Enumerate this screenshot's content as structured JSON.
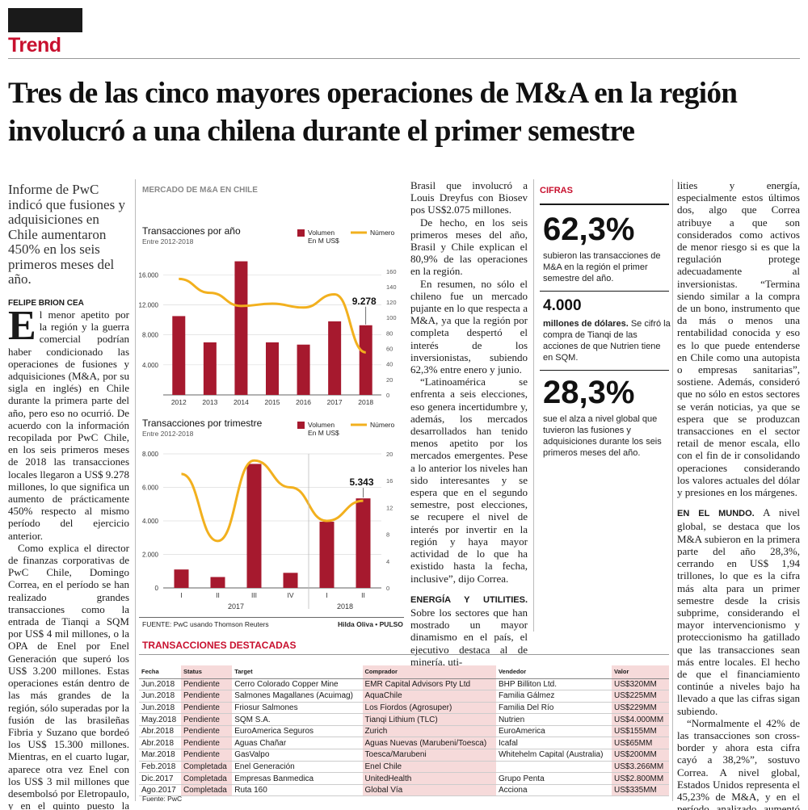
{
  "section": "Trend",
  "headline": "Tres de las cinco mayores operaciones de M&A  en la región involucró a una chilena durante el primer semestre",
  "deck": "Informe de PwC indicó que fusiones y adquisiciones en Chile aumentaron 450% en los seis primeros meses del año.",
  "byline": "FELIPE BRION CEA",
  "body_col1": {
    "dropcap": "E",
    "p1": "l menor apetito por la región y la guerra comercial podrían haber condicionado las operaciones de fusiones y adquisiciones (M&A, por su sigla en inglés) en Chile durante la primera parte del año, pero eso no ocurrió. De acuerdo con la información recopilada por PwC Chile, en los seis primeros meses de 2018 las transacciones locales llegaron a US$ 9.278 millones, lo que significa un aumento de prácticamente 450% respecto al mismo período del ejercicio anterior.",
    "p2": "Como explica el director de finanzas corporativas de PwC Chile, Domingo Correa, en el período se han realizado grandes transacciones como la entrada de Tianqi a SQM por US$ 4 mil millones, o la OPA de Enel por Enel Generación que superó los US$ 3.200 millones. Estas operaciones están dentro de las más grandes de la región, sólo superadas por la fusión de las brasileñas Fibria y Suzano que bordeó los US$ 15.300 millones. Mientras, en el cuarto lugar, aparece otra vez Enel con los US$ 3 mil millones que desembolsó por Eletropaulo, y en el quinto puesto la operación en"
  },
  "body_col2": {
    "p1": "Brasil que involucró a Louis Dreyfus con Biosev pos US$2.075 millones.",
    "p2": "De hecho, en los seis primeros meses del año, Brasil y Chile explican el 80,9% de las operaciones en la región.",
    "p3": "En resumen, no sólo el chileno fue un mercado pujante en lo que respecta a M&A, ya que la región por completa despertó el interés de los inversionistas, subiendo 62,3% entre enero y junio.",
    "p4": "“Latinoamérica se enfrenta a seis elecciones, eso genera incertidumbre y, además, los mercados desarrollados han tenido menos apetito por los mercados emergentes. Pese a lo anterior los niveles han sido interesantes y se espera que en el segundo semestre, post elecciones, se recupere el nivel de interés por invertir en la región y haya mayor actividad de lo que ha existido hasta la fecha, inclusive”, dijo Correa.",
    "subhead": "ENERGÍA Y UTILITIES.",
    "p5": " Sobre los sectores que han mostrado un mayor dinamismo en el país, el ejecutivo destaca al de minería, uti-"
  },
  "cifras": {
    "label": "CIFRAS",
    "c1_value": "62,3%",
    "c1_text": "subieron las transacciones de M&A en la región el primer semestre del año.",
    "c2_value": "4.000",
    "c2_bold": "millones de dólares.",
    "c2_text": " Se cifró la compra de Tianqi de las acciones de que Nutrien tiene en SQM.",
    "c3_value": "28,3%",
    "c3_text": "sue el alza a nivel global que tuvieron las fusiones y adquisiciones durante los seis primeros meses del año."
  },
  "body_col3": {
    "p1": "lities y energía, especialmente estos últimos dos, algo que Correa atribuye a que son considerados como activos de menor riesgo si es que la regulación protege adecuadamente al inversionistas. “Termina siendo similar a la compra de un bono, instrumento que da más o menos una rentabilidad conocida y eso es lo que puede entenderse en Chile como una autopista o empresas sanitarias”, sostiene. Además, consideró que no sólo en estos sectores se verán noticias, ya que se espera que se produzcan transacciones en el sector retail de menor escala, ello con el fin de ir consolidando operaciones considerando los valores actuales del dólar y presiones en los márgenes.",
    "subhead": "EN EL MUNDO.",
    "p2": " A nivel global, se destaca que los M&A subieron en la primera parte del año 28,3%, cerrando en US$ 1,94 trillones, lo que es la cifra más alta para un primer semestre desde la crisis subprime, considerando el mayor intervencionismo y proteccionismo ha gatillado que las transacciones sean más entre locales. El hecho de que el financiamiento continúe a niveles bajo ha llevado a que las cifras sigan subiendo.",
    "p3": "“Normalmente el 42% de las transacciones son cross-border y ahora esta cifra cayó a 38,2%”, sostuvo Correa. A nivel global, Estados Unidos representa el 45,23% de M&A, y en el período analizado aumentó en 28,8% su actividad."
  },
  "chart_section_title": "MERCADO DE M&A EN CHILE",
  "chart_source": "FUENTE: PwC usando Thomson Reuters",
  "chart_credit": "Hilda Oliva • PULSO",
  "colors": {
    "bar": "#a6192e",
    "line": "#f2b01e",
    "accent": "#c8102e"
  },
  "chart_data": [
    {
      "type": "bar",
      "title": "Transacciones por año",
      "subtitle": "Entre 2012-2018",
      "categories": [
        "2012",
        "2013",
        "2014",
        "2015",
        "2016",
        "2017",
        "2018"
      ],
      "series": [
        {
          "name": "Volumen En M US$",
          "values": [
            10500,
            7000,
            17800,
            7000,
            6700,
            9800,
            9278
          ],
          "axis": "left"
        },
        {
          "name": "Número",
          "values": [
            150,
            132,
            115,
            118,
            113,
            130,
            55
          ],
          "axis": "right"
        }
      ],
      "ylim_left": [
        0,
        17000
      ],
      "yticks_left": [
        "4.000",
        "8.000",
        "12.000",
        "16.000"
      ],
      "ylim_right": [
        0,
        165
      ],
      "yticks_right": [
        "0",
        "20",
        "40",
        "60",
        "80",
        "100",
        "120",
        "140",
        "160"
      ],
      "annotation": "9.278",
      "legend_volume": "Volumen En M US$",
      "legend_number": "Número"
    },
    {
      "type": "bar",
      "title": "Transacciones por trimestre",
      "subtitle": "Entre 2012-2018",
      "categories": [
        "I",
        "II",
        "III",
        "IV",
        "I",
        "II"
      ],
      "groups": [
        "2017",
        "2018"
      ],
      "series": [
        {
          "name": "Volumen En M US$",
          "values": [
            1100,
            650,
            7400,
            900,
            3950,
            5343
          ],
          "axis": "left"
        },
        {
          "name": "Número",
          "values": [
            17,
            7,
            19,
            15,
            10,
            13
          ],
          "axis": "right"
        }
      ],
      "ylim_left": [
        0,
        8000
      ],
      "yticks_left": [
        "0",
        "2.000",
        "4.000",
        "6.000",
        "8.000"
      ],
      "ylim_right": [
        0,
        20
      ],
      "yticks_right": [
        "0",
        "4",
        "8",
        "12",
        "16",
        "20"
      ],
      "annotation": "5.343",
      "legend_volume": "Volumen En M US$",
      "legend_number": "Número"
    }
  ],
  "table": {
    "title": "TRANSACCIONES DESTACADAS",
    "headers": [
      "Fecha",
      "Status",
      "Target",
      "Comprador",
      "Vendedor",
      "Valor"
    ],
    "rows": [
      [
        "Jun.2018",
        "Pendiente",
        "Cerro Colorado Copper Mine",
        "EMR Capital Advisors Pty Ltd",
        "BHP Billiton Ltd.",
        "US$320MM"
      ],
      [
        "Jun.2018",
        "Pendiente",
        "Salmones Magallanes (Acuimag)",
        "AquaChile",
        "Familia Gálmez",
        "US$225MM"
      ],
      [
        "Jun.2018",
        "Pendiente",
        "Friosur Salmones",
        "Los Fiordos (Agrosuper)",
        "Familia Del Río",
        "US$229MM"
      ],
      [
        "May.2018",
        "Pendiente",
        "SQM S.A.",
        "Tianqi Lithium (TLC)",
        "Nutrien",
        "US$4.000MM"
      ],
      [
        "Abr.2018",
        "Pendiente",
        "EuroAmerica Seguros",
        "Zurich",
        "EuroAmerica",
        "US$155MM"
      ],
      [
        "Abr.2018",
        "Pendiente",
        "Aguas Chañar",
        "Aguas Nuevas (Marubeni/Toesca)",
        "Icafal",
        "US$65MM"
      ],
      [
        "Mar.2018",
        "Pendiente",
        "GasValpo",
        "Toesca/Marubeni",
        "Whitehelm Capital (Australia)",
        "US$200MM"
      ],
      [
        "Feb.2018",
        "Completada",
        "Enel Generación",
        "Enel Chile",
        "",
        "US$3.266MM"
      ],
      [
        "Dic.2017",
        "Completada",
        "Empresas Banmedica",
        "UnitedHealth",
        "Grupo Penta",
        "US$2.800MM"
      ],
      [
        "Ago.2017",
        "Completada",
        "Ruta 160",
        "Global Vía",
        "Acciona",
        "US$335MM"
      ]
    ],
    "source": "Fuente: PwC"
  }
}
